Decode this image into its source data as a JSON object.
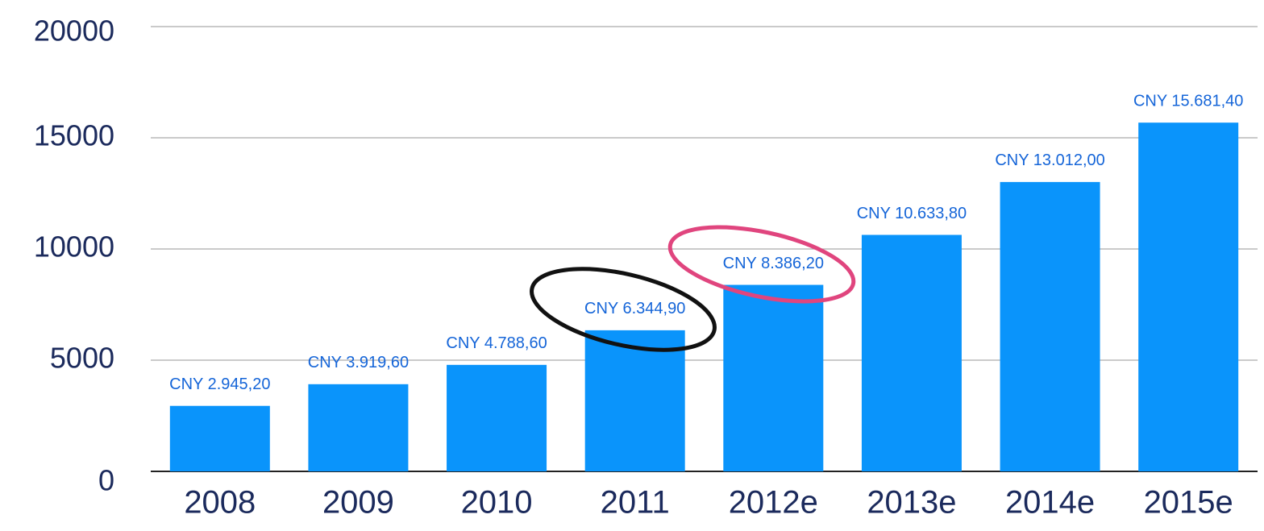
{
  "chart_data": {
    "type": "bar",
    "categories": [
      "2008",
      "2009",
      "2010",
      "2011",
      "2012e",
      "2013e",
      "2014e",
      "2015e"
    ],
    "values": [
      2945.2,
      3919.6,
      4788.6,
      6344.9,
      8386.2,
      10633.8,
      13012.0,
      15681.4
    ],
    "value_labels": [
      "CNY 2.945,20",
      "CNY 3.919,60",
      "CNY 4.788,60",
      "CNY 6.344,90",
      "CNY 8.386,20",
      "CNY 10.633,80",
      "CNY 13.012,00",
      "CNY 15.681,40"
    ],
    "color": "#0a94fb",
    "ylim": [
      0,
      20000
    ],
    "yticks": [
      0,
      5000,
      10000,
      15000,
      20000
    ],
    "grid": true
  }
}
